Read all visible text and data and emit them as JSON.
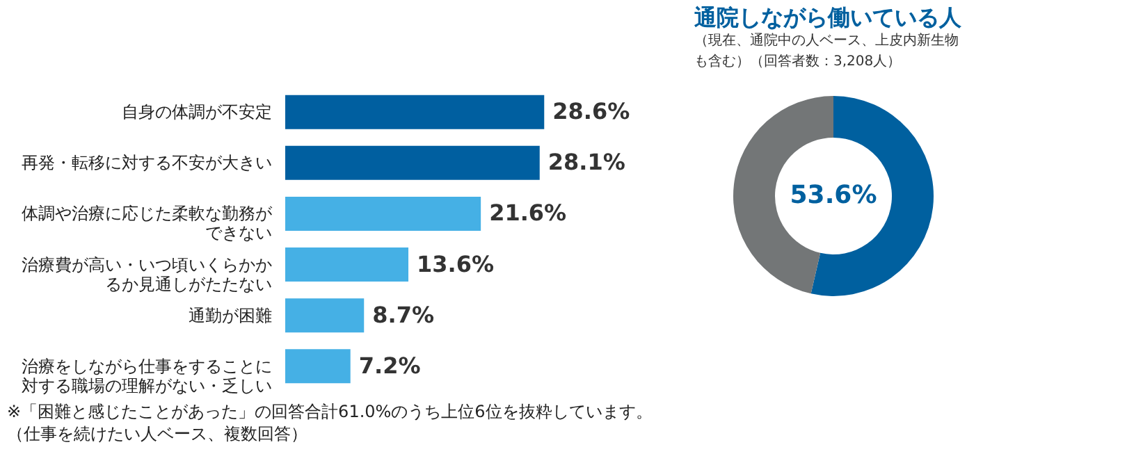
{
  "chart_data": [
    {
      "type": "bar",
      "orientation": "horizontal",
      "categories": [
        "自身の体調が不安定",
        "再発・転移に対する不安が大きい",
        "体調や治療に応じた柔軟な勤務ができない",
        "治療費が高い・いつ頃いくらかかるか見通しがたたない",
        "通勤が困難",
        "治療をしながら仕事をすることに対する職場の理解がない・乏しい"
      ],
      "values": [
        28.6,
        28.1,
        21.6,
        13.6,
        8.7,
        7.2
      ],
      "colors": [
        "#005fa0",
        "#005fa0",
        "#45b0e5",
        "#45b0e5",
        "#45b0e5",
        "#45b0e5"
      ],
      "value_labels": [
        "28.6%",
        "28.1%",
        "21.6%",
        "13.6%",
        "8.7%",
        "7.2%"
      ],
      "annotations": [
        "※「困難と感じたことがあった」の回答合計61.0%のうち上位6位を抜粋しています。",
        "（仕事を続けたい人ベース、複数回答）"
      ]
    },
    {
      "type": "donut",
      "title": "通院しながら働いている人",
      "subtitle": "（現在、通院中の人ベース、上皮内新生物も含む）（回答者数：3,208人）",
      "categories": [
        null,
        null
      ],
      "values": [
        53.6,
        46.4
      ],
      "colors": [
        "#00609f",
        "#737677"
      ],
      "value_labels": [
        "53.6%",
        null
      ]
    }
  ]
}
